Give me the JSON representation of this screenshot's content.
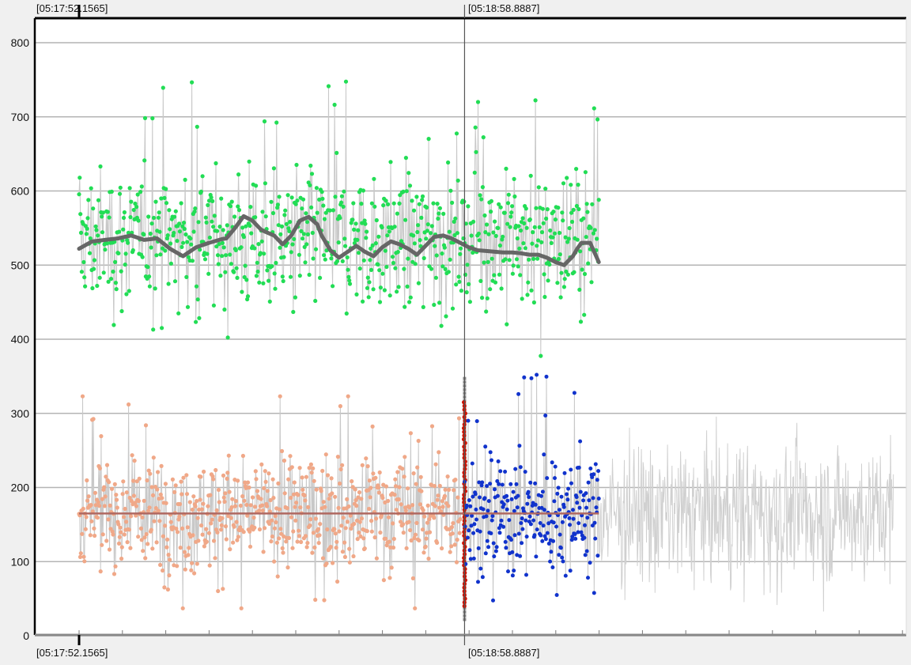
{
  "chart_data": {
    "type": "line",
    "title": "",
    "xlabel": "",
    "ylabel": "",
    "ylim": [
      0,
      830
    ],
    "yticks": [
      0,
      100,
      200,
      300,
      400,
      500,
      600,
      700,
      800
    ],
    "ytick_labels": [
      "0",
      "100",
      "200",
      "300",
      "400",
      "500",
      "600",
      "700",
      "800"
    ],
    "grid": true,
    "timestamps": {
      "start": "[05:17:52.1565]",
      "cursor": "[05:18:58.8887]"
    },
    "cursor_time": "05:18:58.8887",
    "x_range_seconds": [
      0,
      185
    ],
    "colors": {
      "green_points": "#22dd55",
      "salmon_points": "#f0a888",
      "blue_points": "#1133cc",
      "red_points": "#cc1100",
      "smooth_line": "#666666",
      "mean_line": "#b06860",
      "connector": "#c8c8c8",
      "gray_trace": "#d0d0d0",
      "grid": "#b4b4b4",
      "cursor": "#555555"
    },
    "series": [
      {
        "kind": "upper points",
        "x_range": [
          0,
          120
        ],
        "mean": 535,
        "spread": 65,
        "min": 355,
        "max": 800,
        "count": 780
      },
      {
        "kind": "upper smoothed trend",
        "x": [
          0,
          3,
          6,
          9,
          12,
          15,
          18,
          21,
          24,
          27,
          30,
          33,
          34,
          36,
          38,
          40,
          42,
          43,
          45,
          47,
          49,
          51,
          53,
          55,
          56,
          58,
          60,
          62,
          64,
          66,
          68,
          70,
          72,
          74,
          76,
          78,
          80,
          82,
          84,
          86,
          88,
          90,
          92,
          94,
          96,
          98,
          100,
          102,
          104,
          106,
          108,
          110,
          112,
          114,
          115,
          116,
          118,
          120
        ],
        "y": [
          522,
          532,
          534,
          536,
          540,
          534,
          536,
          522,
          512,
          524,
          530,
          535,
          536,
          550,
          566,
          560,
          548,
          545,
          540,
          528,
          540,
          560,
          565,
          555,
          540,
          520,
          510,
          518,
          526,
          518,
          512,
          524,
          532,
          528,
          522,
          514,
          526,
          538,
          540,
          536,
          530,
          524,
          520,
          519,
          518,
          517,
          517,
          516,
          514,
          514,
          510,
          504,
          500,
          512,
          522,
          530,
          530,
          504
        ]
      },
      {
        "kind": "lower points (before cursor)",
        "x_range": [
          0,
          88
        ],
        "mean": 165,
        "spread": 55,
        "min": 37,
        "max": 323,
        "count": 640
      },
      {
        "kind": "lower points (after cursor)",
        "x_range": [
          89,
          120
        ],
        "mean": 165,
        "spread": 60,
        "min": 27,
        "max": 352,
        "count": 260
      },
      {
        "kind": "cursor column",
        "x": 89,
        "range": [
          22,
          350
        ]
      },
      {
        "kind": "lower mean line",
        "x_range": [
          0,
          120
        ],
        "value": 165
      },
      {
        "kind": "lower gray trace (no markers)",
        "x_range": [
          120,
          188
        ],
        "range": [
          20,
          300
        ]
      }
    ]
  }
}
